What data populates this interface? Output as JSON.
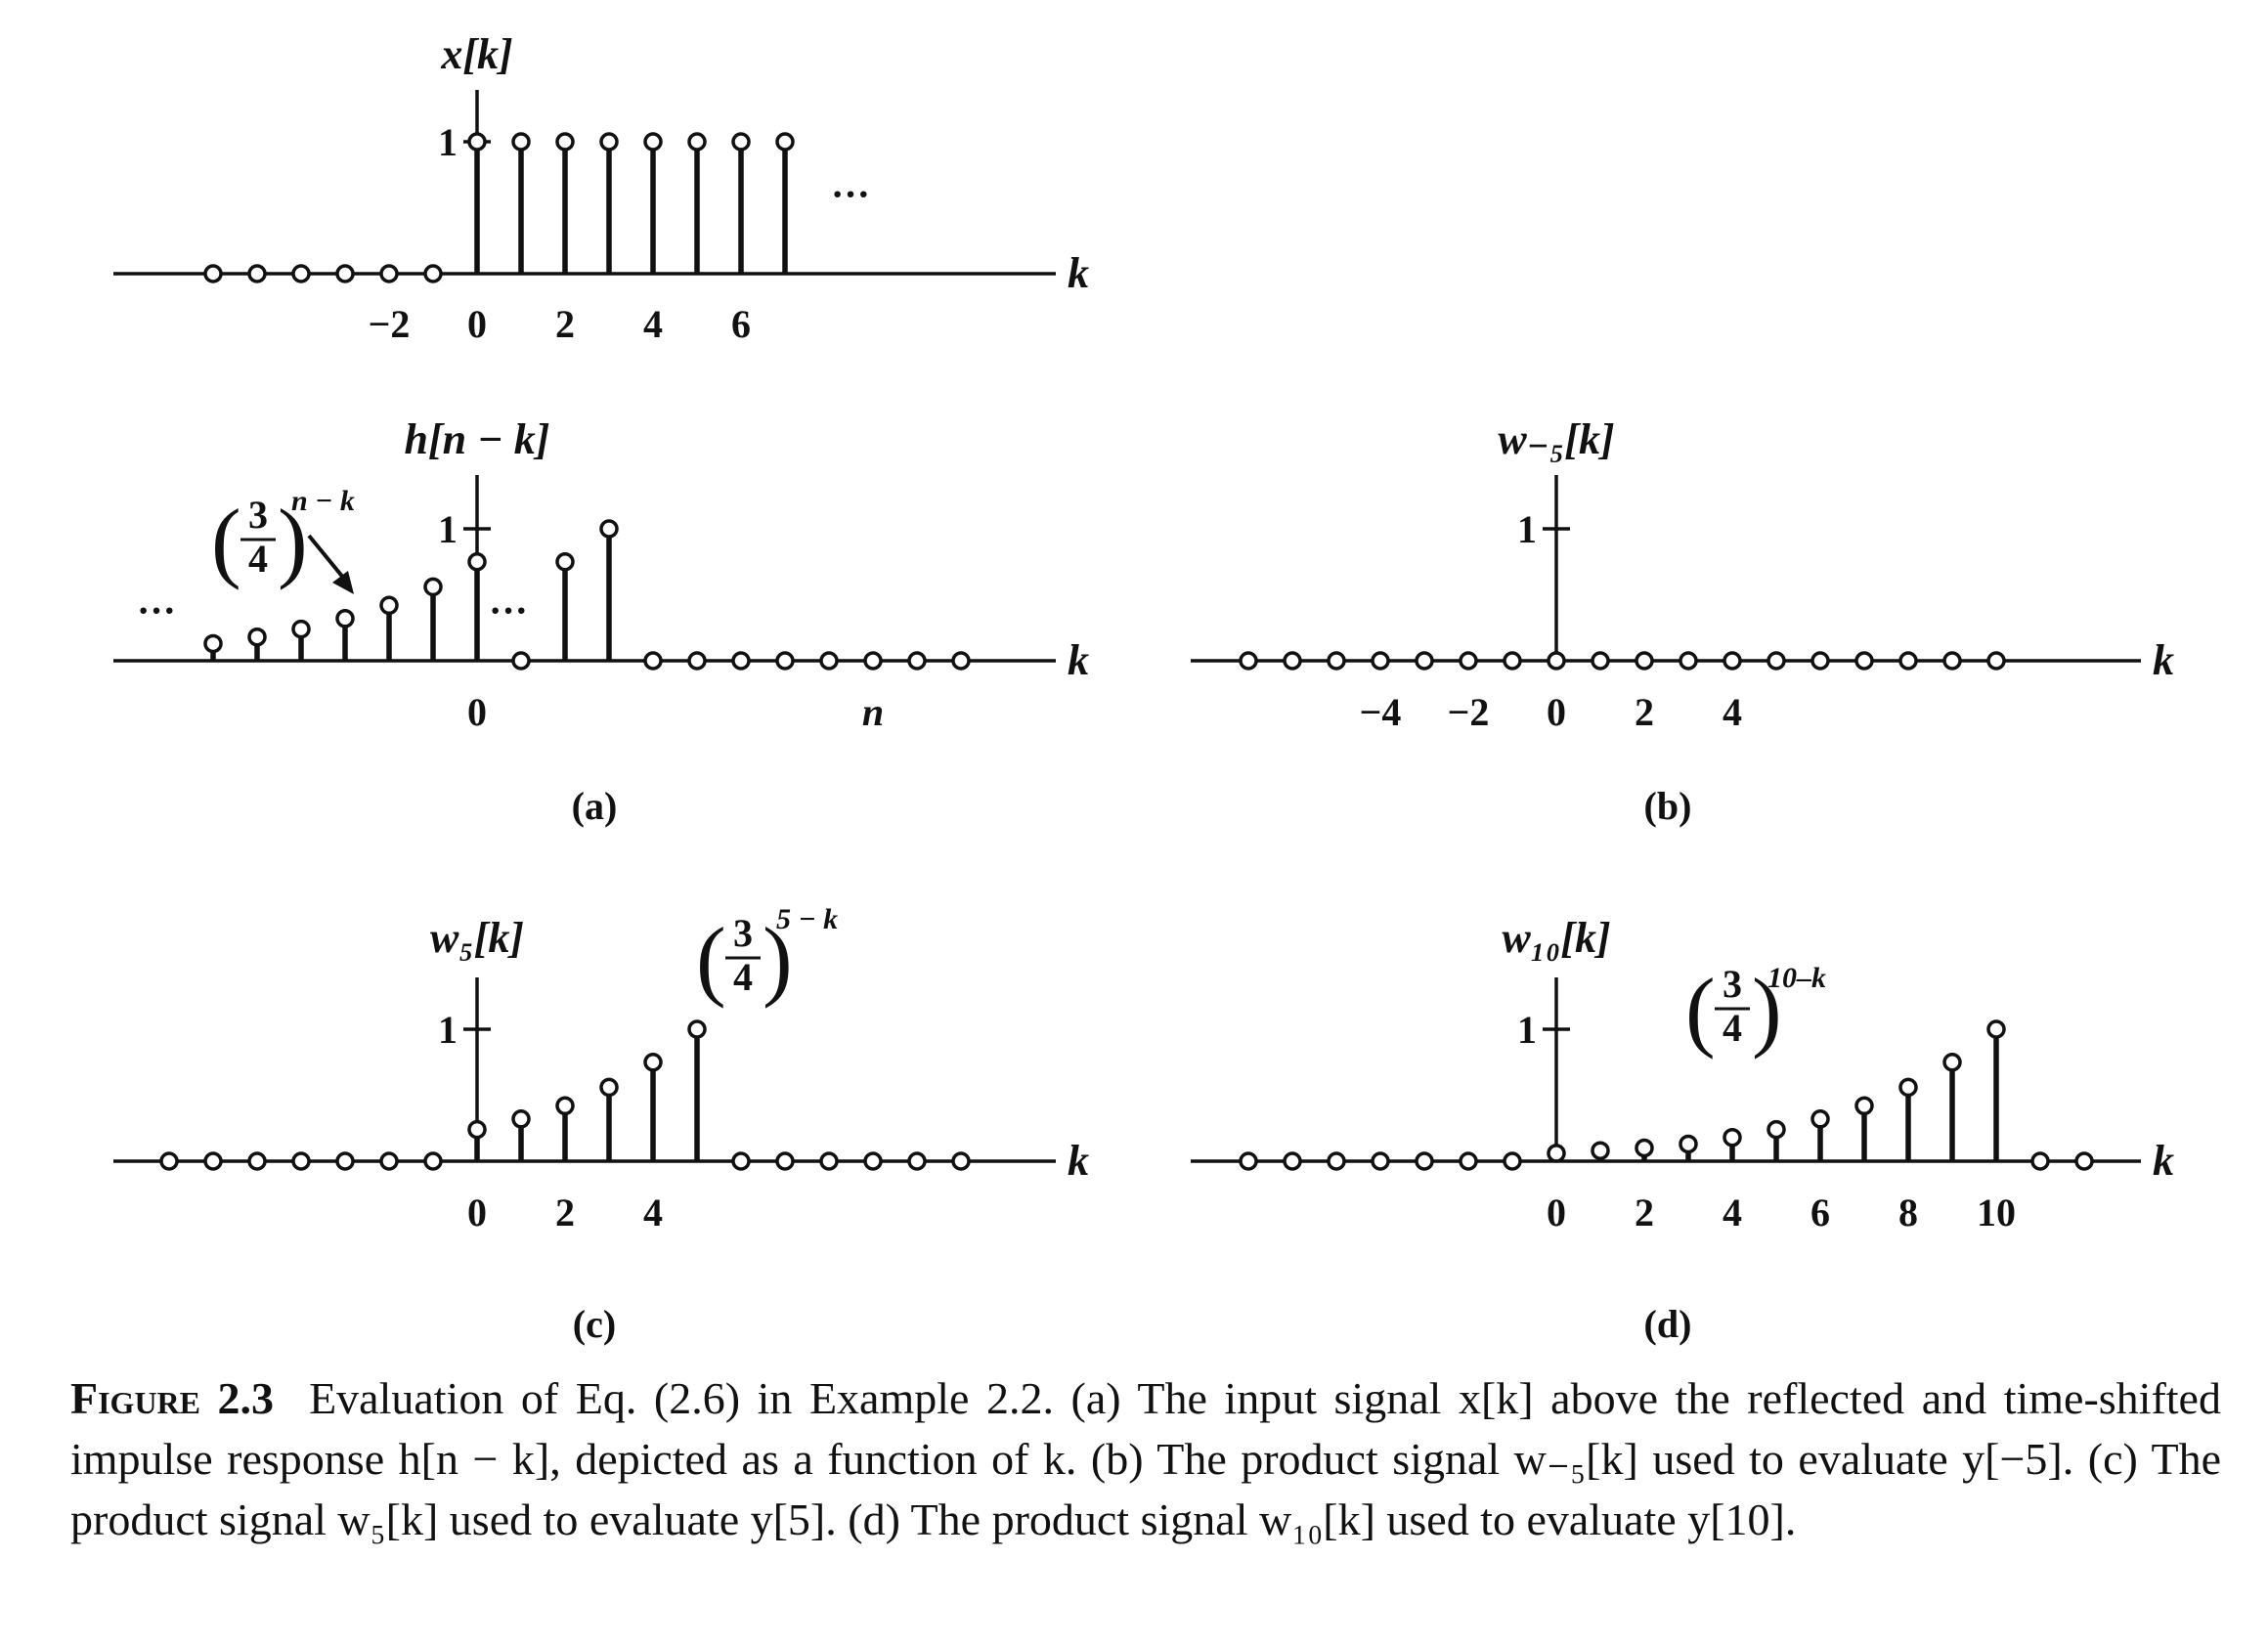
{
  "figure": {
    "ellipsis": "···",
    "one_label": "1",
    "panel_labels": [
      "(a)",
      "(b)",
      "(c)",
      "(d)"
    ],
    "caption_label": "Figure 2.3",
    "caption_text": "Evaluation of Eq. (2.6) in Example 2.2. (a) The input signal x[k] above the reflected and time-shifted impulse response h[n − k], depicted as a function of k. (b) The product signal w₋₅[k] used to evaluate y[−5]. (c) The product signal w₅[k] used to evaluate y[5]. (d) The product signal w₁₀[k] used to evaluate y[10]."
  },
  "chart_data": [
    {
      "type": "stem",
      "panel": "(a)",
      "ylabel": "x[k]",
      "xlabel": "k",
      "xticks": [
        "−2",
        "0",
        "2",
        "4",
        "6"
      ],
      "x": [
        -6,
        -5,
        -4,
        -3,
        -2,
        -1,
        0,
        1,
        2,
        3,
        4,
        5,
        6,
        7
      ],
      "values": [
        0,
        0,
        0,
        0,
        0,
        0,
        1,
        1,
        1,
        1,
        1,
        1,
        1,
        1
      ],
      "annotations": [
        "···"
      ]
    },
    {
      "type": "stem",
      "panel": "(a)",
      "ylabel": "h[n − k]",
      "xlabel": "k",
      "xticks": [
        "0",
        "n"
      ],
      "formula": {
        "num": "3",
        "den": "4",
        "exp": "n − k"
      },
      "x": [
        -6,
        -5,
        -4,
        -3,
        -2,
        -1,
        0,
        1,
        2,
        3,
        4,
        5,
        6,
        7,
        8,
        9,
        10,
        11
      ],
      "values": [
        0.13,
        0.18,
        0.24,
        0.32,
        0.42,
        0.56,
        0.75,
        0,
        0.75,
        1.0,
        0,
        0,
        0,
        0,
        0,
        0,
        0,
        0
      ],
      "annotations": [
        "···",
        "···"
      ]
    },
    {
      "type": "stem",
      "panel": "(b)",
      "ylabel": "w₋₅[k]",
      "xlabel": "k",
      "xticks": [
        "−4",
        "−2",
        "0",
        "2",
        "4"
      ],
      "x": [
        -7,
        -6,
        -5,
        -4,
        -3,
        -2,
        -1,
        0,
        1,
        2,
        3,
        4,
        5,
        6,
        7,
        8,
        9,
        10
      ],
      "values": [
        0,
        0,
        0,
        0,
        0,
        0,
        0,
        0,
        0,
        0,
        0,
        0,
        0,
        0,
        0,
        0,
        0,
        0
      ]
    },
    {
      "type": "stem",
      "panel": "(c)",
      "ylabel": "w₅[k]",
      "xlabel": "k",
      "xticks": [
        "0",
        "2",
        "4"
      ],
      "formula": {
        "num": "3",
        "den": "4",
        "exp": "5 − k"
      },
      "x": [
        -7,
        -6,
        -5,
        -4,
        -3,
        -2,
        -1,
        0,
        1,
        2,
        3,
        4,
        5,
        6,
        7,
        8,
        9,
        10,
        11
      ],
      "values": [
        0,
        0,
        0,
        0,
        0,
        0,
        0,
        0.24,
        0.32,
        0.42,
        0.56,
        0.75,
        1.0,
        0,
        0,
        0,
        0,
        0,
        0
      ]
    },
    {
      "type": "stem",
      "panel": "(d)",
      "ylabel": "w₁₀[k]",
      "xlabel": "k",
      "xticks": [
        "0",
        "2",
        "4",
        "6",
        "8",
        "10"
      ],
      "formula": {
        "num": "3",
        "den": "4",
        "exp": "10–k"
      },
      "x": [
        -7,
        -6,
        -5,
        -4,
        -3,
        -2,
        -1,
        0,
        1,
        2,
        3,
        4,
        5,
        6,
        7,
        8,
        9,
        10,
        11,
        12
      ],
      "values": [
        0,
        0,
        0,
        0,
        0,
        0,
        0,
        0.06,
        0.08,
        0.1,
        0.13,
        0.18,
        0.24,
        0.32,
        0.42,
        0.56,
        0.75,
        1.0,
        0,
        0
      ]
    }
  ]
}
